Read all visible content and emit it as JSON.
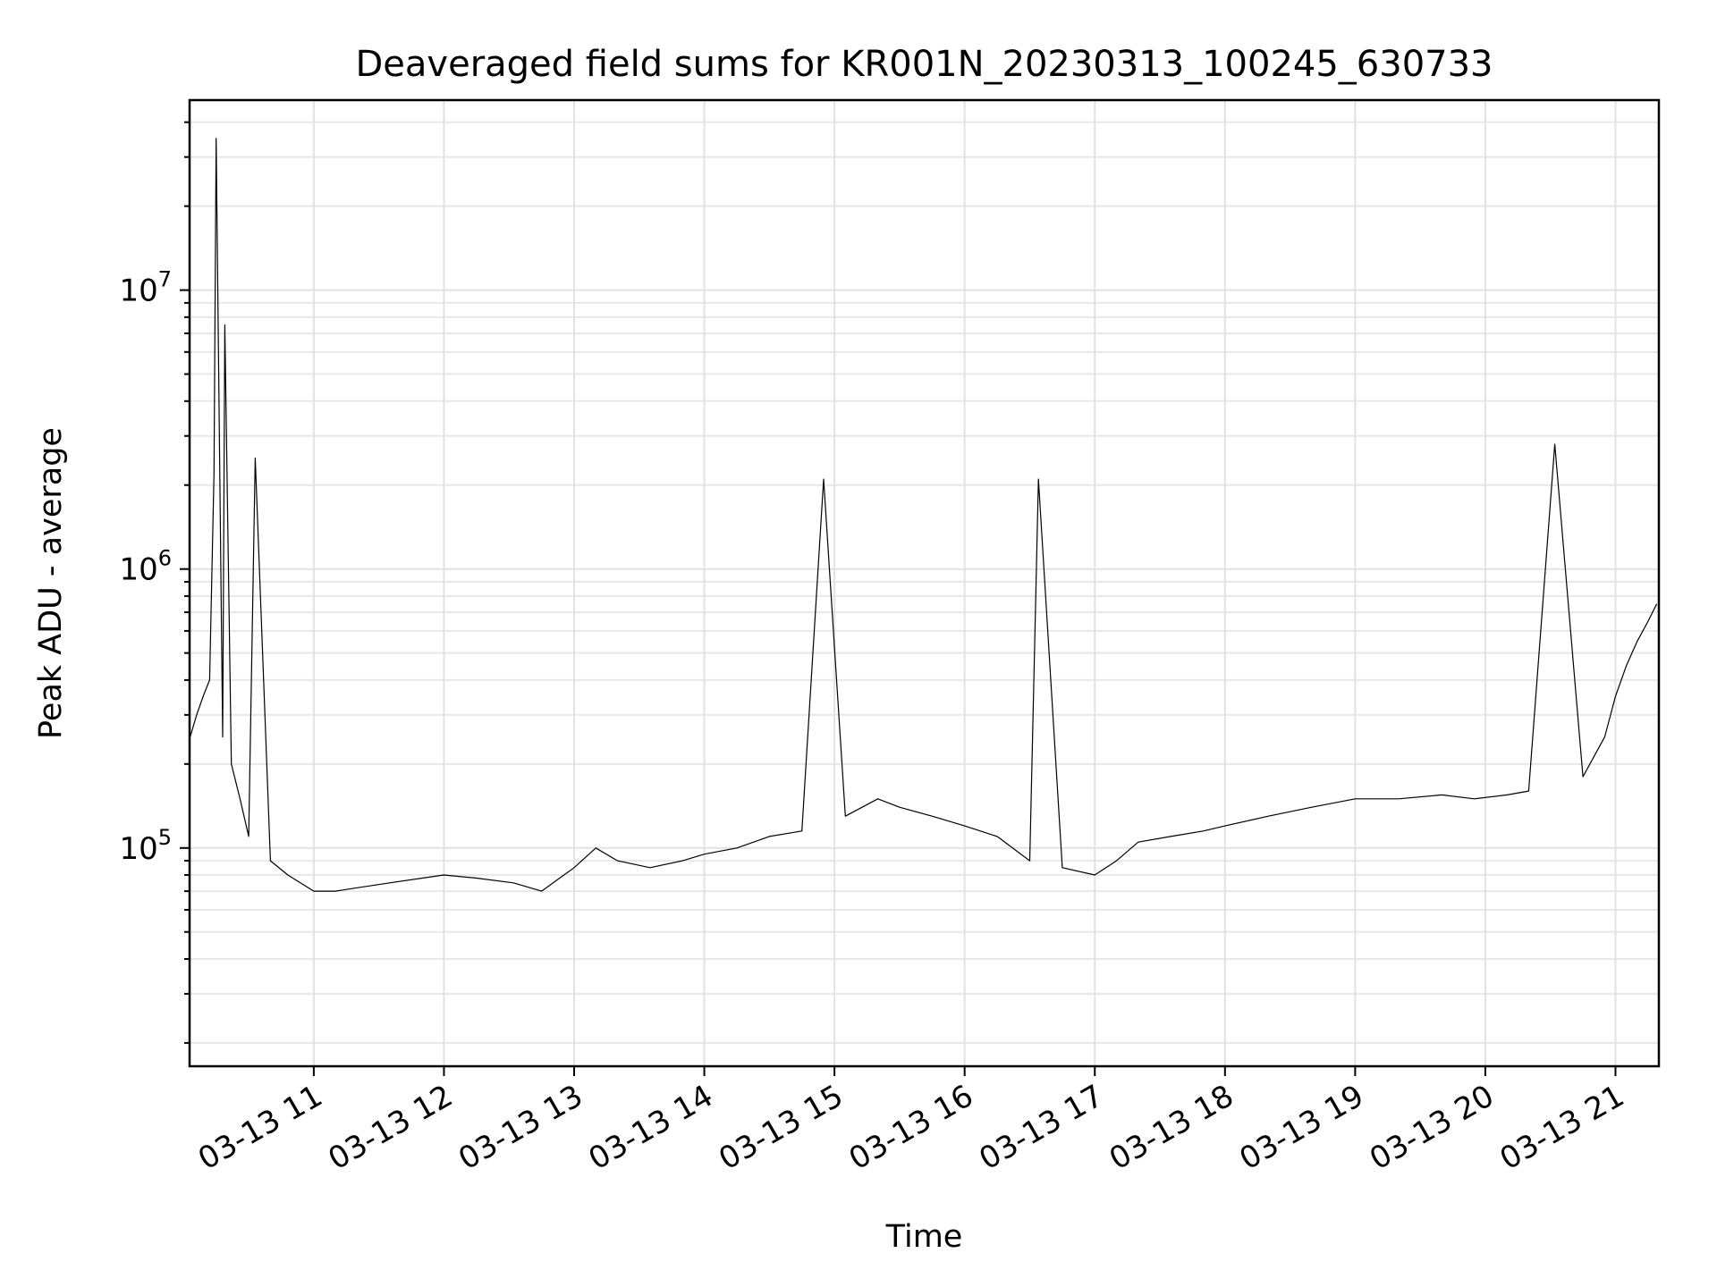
{
  "chart_data": {
    "type": "line",
    "title": "Deaveraged field sums for KR001N_20230313_100245_630733",
    "xlabel": "Time",
    "ylabel": "Peak ADU - average",
    "yscale": "log",
    "ylim": [
      16500,
      48000000
    ],
    "xlim": [
      "2023-03-13 10:02:45",
      "2023-03-13 21:20:00"
    ],
    "grid": true,
    "x_ticks": [
      {
        "value": "2023-03-13 11:00",
        "label": "03-13 11"
      },
      {
        "value": "2023-03-13 12:00",
        "label": "03-13 12"
      },
      {
        "value": "2023-03-13 13:00",
        "label": "03-13 13"
      },
      {
        "value": "2023-03-13 14:00",
        "label": "03-13 14"
      },
      {
        "value": "2023-03-13 15:00",
        "label": "03-13 15"
      },
      {
        "value": "2023-03-13 16:00",
        "label": "03-13 16"
      },
      {
        "value": "2023-03-13 17:00",
        "label": "03-13 17"
      },
      {
        "value": "2023-03-13 18:00",
        "label": "03-13 18"
      },
      {
        "value": "2023-03-13 19:00",
        "label": "03-13 19"
      },
      {
        "value": "2023-03-13 20:00",
        "label": "03-13 20"
      },
      {
        "value": "2023-03-13 21:00",
        "label": "03-13 21"
      }
    ],
    "y_ticks": [
      {
        "value": 100000,
        "base": "10",
        "exp": "5"
      },
      {
        "value": 1000000,
        "base": "10",
        "exp": "6"
      },
      {
        "value": 10000000,
        "base": "10",
        "exp": "7"
      }
    ],
    "series": [
      {
        "color": "#000000",
        "x": [
          "2023-03-13 10:03",
          "2023-03-13 10:06",
          "2023-03-13 10:09",
          "2023-03-13 10:12",
          "2023-03-13 10:14",
          "2023-03-13 10:15",
          "2023-03-13 10:18",
          "2023-03-13 10:19",
          "2023-03-13 10:22",
          "2023-03-13 10:26",
          "2023-03-13 10:30",
          "2023-03-13 10:33",
          "2023-03-13 10:40",
          "2023-03-13 10:48",
          "2023-03-13 11:00",
          "2023-03-13 11:10",
          "2023-03-13 11:20",
          "2023-03-13 11:35",
          "2023-03-13 11:50",
          "2023-03-13 12:00",
          "2023-03-13 12:15",
          "2023-03-13 12:32",
          "2023-03-13 12:45",
          "2023-03-13 13:00",
          "2023-03-13 13:10",
          "2023-03-13 13:20",
          "2023-03-13 13:35",
          "2023-03-13 13:50",
          "2023-03-13 14:00",
          "2023-03-13 14:15",
          "2023-03-13 14:30",
          "2023-03-13 14:45",
          "2023-03-13 14:55",
          "2023-03-13 15:05",
          "2023-03-13 15:20",
          "2023-03-13 15:30",
          "2023-03-13 15:45",
          "2023-03-13 16:00",
          "2023-03-13 16:15",
          "2023-03-13 16:30",
          "2023-03-13 16:34",
          "2023-03-13 16:45",
          "2023-03-13 17:00",
          "2023-03-13 17:10",
          "2023-03-13 17:20",
          "2023-03-13 17:35",
          "2023-03-13 17:50",
          "2023-03-13 18:00",
          "2023-03-13 18:20",
          "2023-03-13 18:40",
          "2023-03-13 19:00",
          "2023-03-13 19:20",
          "2023-03-13 19:40",
          "2023-03-13 19:55",
          "2023-03-13 20:10",
          "2023-03-13 20:20",
          "2023-03-13 20:32",
          "2023-03-13 20:45",
          "2023-03-13 20:55",
          "2023-03-13 21:00",
          "2023-03-13 21:05",
          "2023-03-13 21:10",
          "2023-03-13 21:15",
          "2023-03-13 21:19"
        ],
        "y": [
          250000,
          300000,
          350000,
          400000,
          2200000,
          35000000,
          250000,
          7500000,
          200000,
          150000,
          110000,
          2500000,
          90000,
          80000,
          70000,
          70000,
          72000,
          75000,
          78000,
          80000,
          78000,
          75000,
          70000,
          85000,
          100000,
          90000,
          85000,
          90000,
          95000,
          100000,
          110000,
          115000,
          2100000,
          130000,
          150000,
          140000,
          130000,
          120000,
          110000,
          90000,
          2100000,
          85000,
          80000,
          90000,
          105000,
          110000,
          115000,
          120000,
          130000,
          140000,
          150000,
          150000,
          155000,
          150000,
          155000,
          160000,
          2800000,
          180000,
          250000,
          350000,
          450000,
          550000,
          650000,
          750000
        ]
      }
    ]
  }
}
